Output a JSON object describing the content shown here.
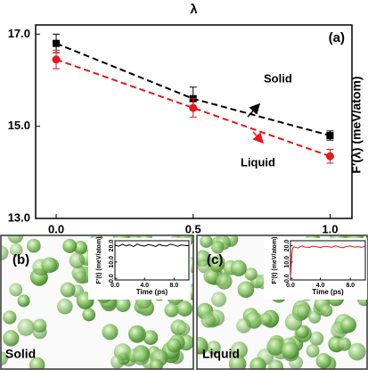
{
  "chart_data": [
    {
      "type": "line",
      "title": "λ",
      "ylabel": "F′(λ) (meV/atom)",
      "panel_label": "(a)",
      "x": [
        0,
        0.5,
        1
      ],
      "xlim": [
        -0.075,
        1.08
      ],
      "xticks": [
        {
          "value": 0,
          "label": "0.0"
        },
        {
          "value": 0.5,
          "label": "0.5"
        },
        {
          "value": 1,
          "label": "1.0"
        }
      ],
      "ylim": [
        13,
        17.2
      ],
      "yticks": [
        {
          "value": 13,
          "label": "13.0"
        },
        {
          "value": 15,
          "label": "15.0"
        },
        {
          "value": 17,
          "label": "17.0"
        }
      ],
      "series": [
        {
          "name": "Solid",
          "color": "#000000",
          "marker": "square",
          "values": [
            16.8,
            15.6,
            14.8
          ],
          "errors": [
            0.2,
            0.25,
            0.1
          ]
        },
        {
          "name": "Liquid",
          "color": "#e8151b",
          "marker": "circle",
          "values": [
            16.45,
            15.4,
            14.35
          ],
          "errors": [
            0.2,
            0.2,
            0.15
          ]
        }
      ]
    },
    {
      "type": "line",
      "panel_label": "(b)",
      "caption": "Solid",
      "xlabel": "Time (ps)",
      "ylabel": "F′(t) (meV/atom)",
      "xlim": [
        0,
        10
      ],
      "xticks": [
        {
          "value": 0,
          "label": "0.0"
        },
        {
          "value": 4,
          "label": "4.0"
        },
        {
          "value": 8,
          "label": "8.0"
        }
      ],
      "ylim": [
        -1,
        23
      ],
      "yticks": [
        {
          "value": 0,
          "label": "0.0"
        },
        {
          "value": 10,
          "label": "10.0"
        },
        {
          "value": 20,
          "label": "20.0"
        }
      ],
      "x": [
        0,
        0.5,
        1,
        1.5,
        2,
        2.5,
        3,
        3.5,
        4,
        4.5,
        5,
        5.5,
        6,
        6.5,
        7,
        7.5,
        8,
        8.5,
        9,
        9.5,
        10
      ],
      "series": [
        {
          "color": "#000000",
          "values": [
            20.3,
            19.6,
            20.8,
            19.9,
            20.5,
            19.4,
            20.9,
            20.1,
            19.7,
            20.6,
            20.2,
            19.5,
            20.7,
            20.0,
            19.8,
            20.9,
            20.3,
            19.6,
            20.4,
            20.1,
            19.9
          ]
        }
      ]
    },
    {
      "type": "line",
      "panel_label": "(c)",
      "caption": "Liquid",
      "xlabel": "Time (ps)",
      "ylabel": "F′(t) (meV/atom)",
      "xlim": [
        0,
        10
      ],
      "xticks": [
        {
          "value": 0,
          "label": "0.0"
        },
        {
          "value": 4,
          "label": "4.0"
        },
        {
          "value": 8,
          "label": "8.0"
        }
      ],
      "ylim": [
        -1,
        23
      ],
      "yticks": [
        {
          "value": 0,
          "label": "0.0"
        },
        {
          "value": 10,
          "label": "10.0"
        },
        {
          "value": 20,
          "label": "20.0"
        }
      ],
      "x": [
        0,
        0.1,
        0.2,
        0.3,
        0.5,
        1,
        1.5,
        2,
        2.5,
        3,
        3.5,
        4,
        4.5,
        5,
        5.5,
        6,
        6.5,
        7,
        7.5,
        8,
        8.5,
        9,
        9.5,
        10
      ],
      "series": [
        {
          "color": "#e8151b",
          "values": [
            0,
            8,
            15,
            18.5,
            19.2,
            18.6,
            19.8,
            19.1,
            18.9,
            19.7,
            19.3,
            18.8,
            19.6,
            19.4,
            19.0,
            19.9,
            19.2,
            18.7,
            19.5,
            19.8,
            19.1,
            19.4,
            19.0,
            19.6
          ]
        }
      ]
    }
  ]
}
